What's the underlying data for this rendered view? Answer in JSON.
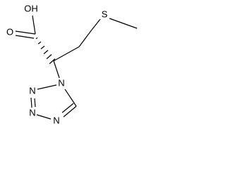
{
  "atoms": [
    {
      "label": "OH"
    },
    {
      "label": "O"
    },
    {
      "label": "S"
    },
    {
      "label": "N"
    },
    {
      "label": "N"
    },
    {
      "label": "N"
    },
    {
      "label": "N"
    }
  ]
}
